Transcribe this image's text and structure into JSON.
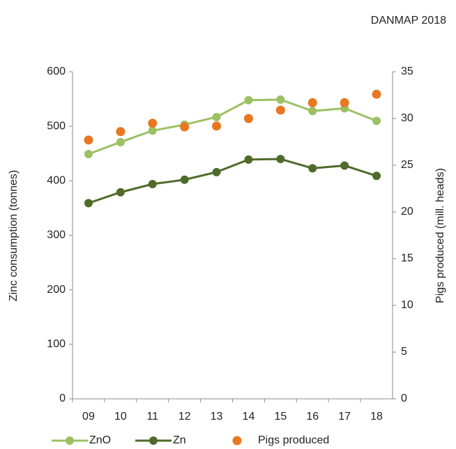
{
  "chart_data": {
    "type": "line",
    "title": "DANMAP 2018",
    "ylabel": "Zinc consumption (tonnes)",
    "y2label": "Pigs produced (mill. heads)",
    "categories": [
      "09",
      "10",
      "11",
      "12",
      "13",
      "14",
      "15",
      "16",
      "17",
      "18"
    ],
    "ylim": [
      0,
      600
    ],
    "yticks": [
      0,
      100,
      200,
      300,
      400,
      500,
      600
    ],
    "y2lim": [
      0,
      35
    ],
    "y2ticks": [
      0,
      5,
      10,
      15,
      20,
      25,
      30,
      35
    ],
    "series": [
      {
        "name": "ZnO",
        "color": "#9bc162",
        "style": "line",
        "values": [
          449,
          471,
          492,
          503,
          517,
          548,
          549,
          528,
          533,
          510
        ]
      },
      {
        "name": "Zn",
        "color": "#4e6b2a",
        "style": "line",
        "values": [
          359,
          379,
          394,
          402,
          416,
          439,
          440,
          423,
          428,
          409
        ]
      },
      {
        "name": "Pigs produced",
        "color": "#e87722",
        "style": "points",
        "axis": "y2",
        "values": [
          27.7,
          28.6,
          29.5,
          29.1,
          29.2,
          30.0,
          30.9,
          31.7,
          31.7,
          32.6
        ]
      }
    ]
  }
}
